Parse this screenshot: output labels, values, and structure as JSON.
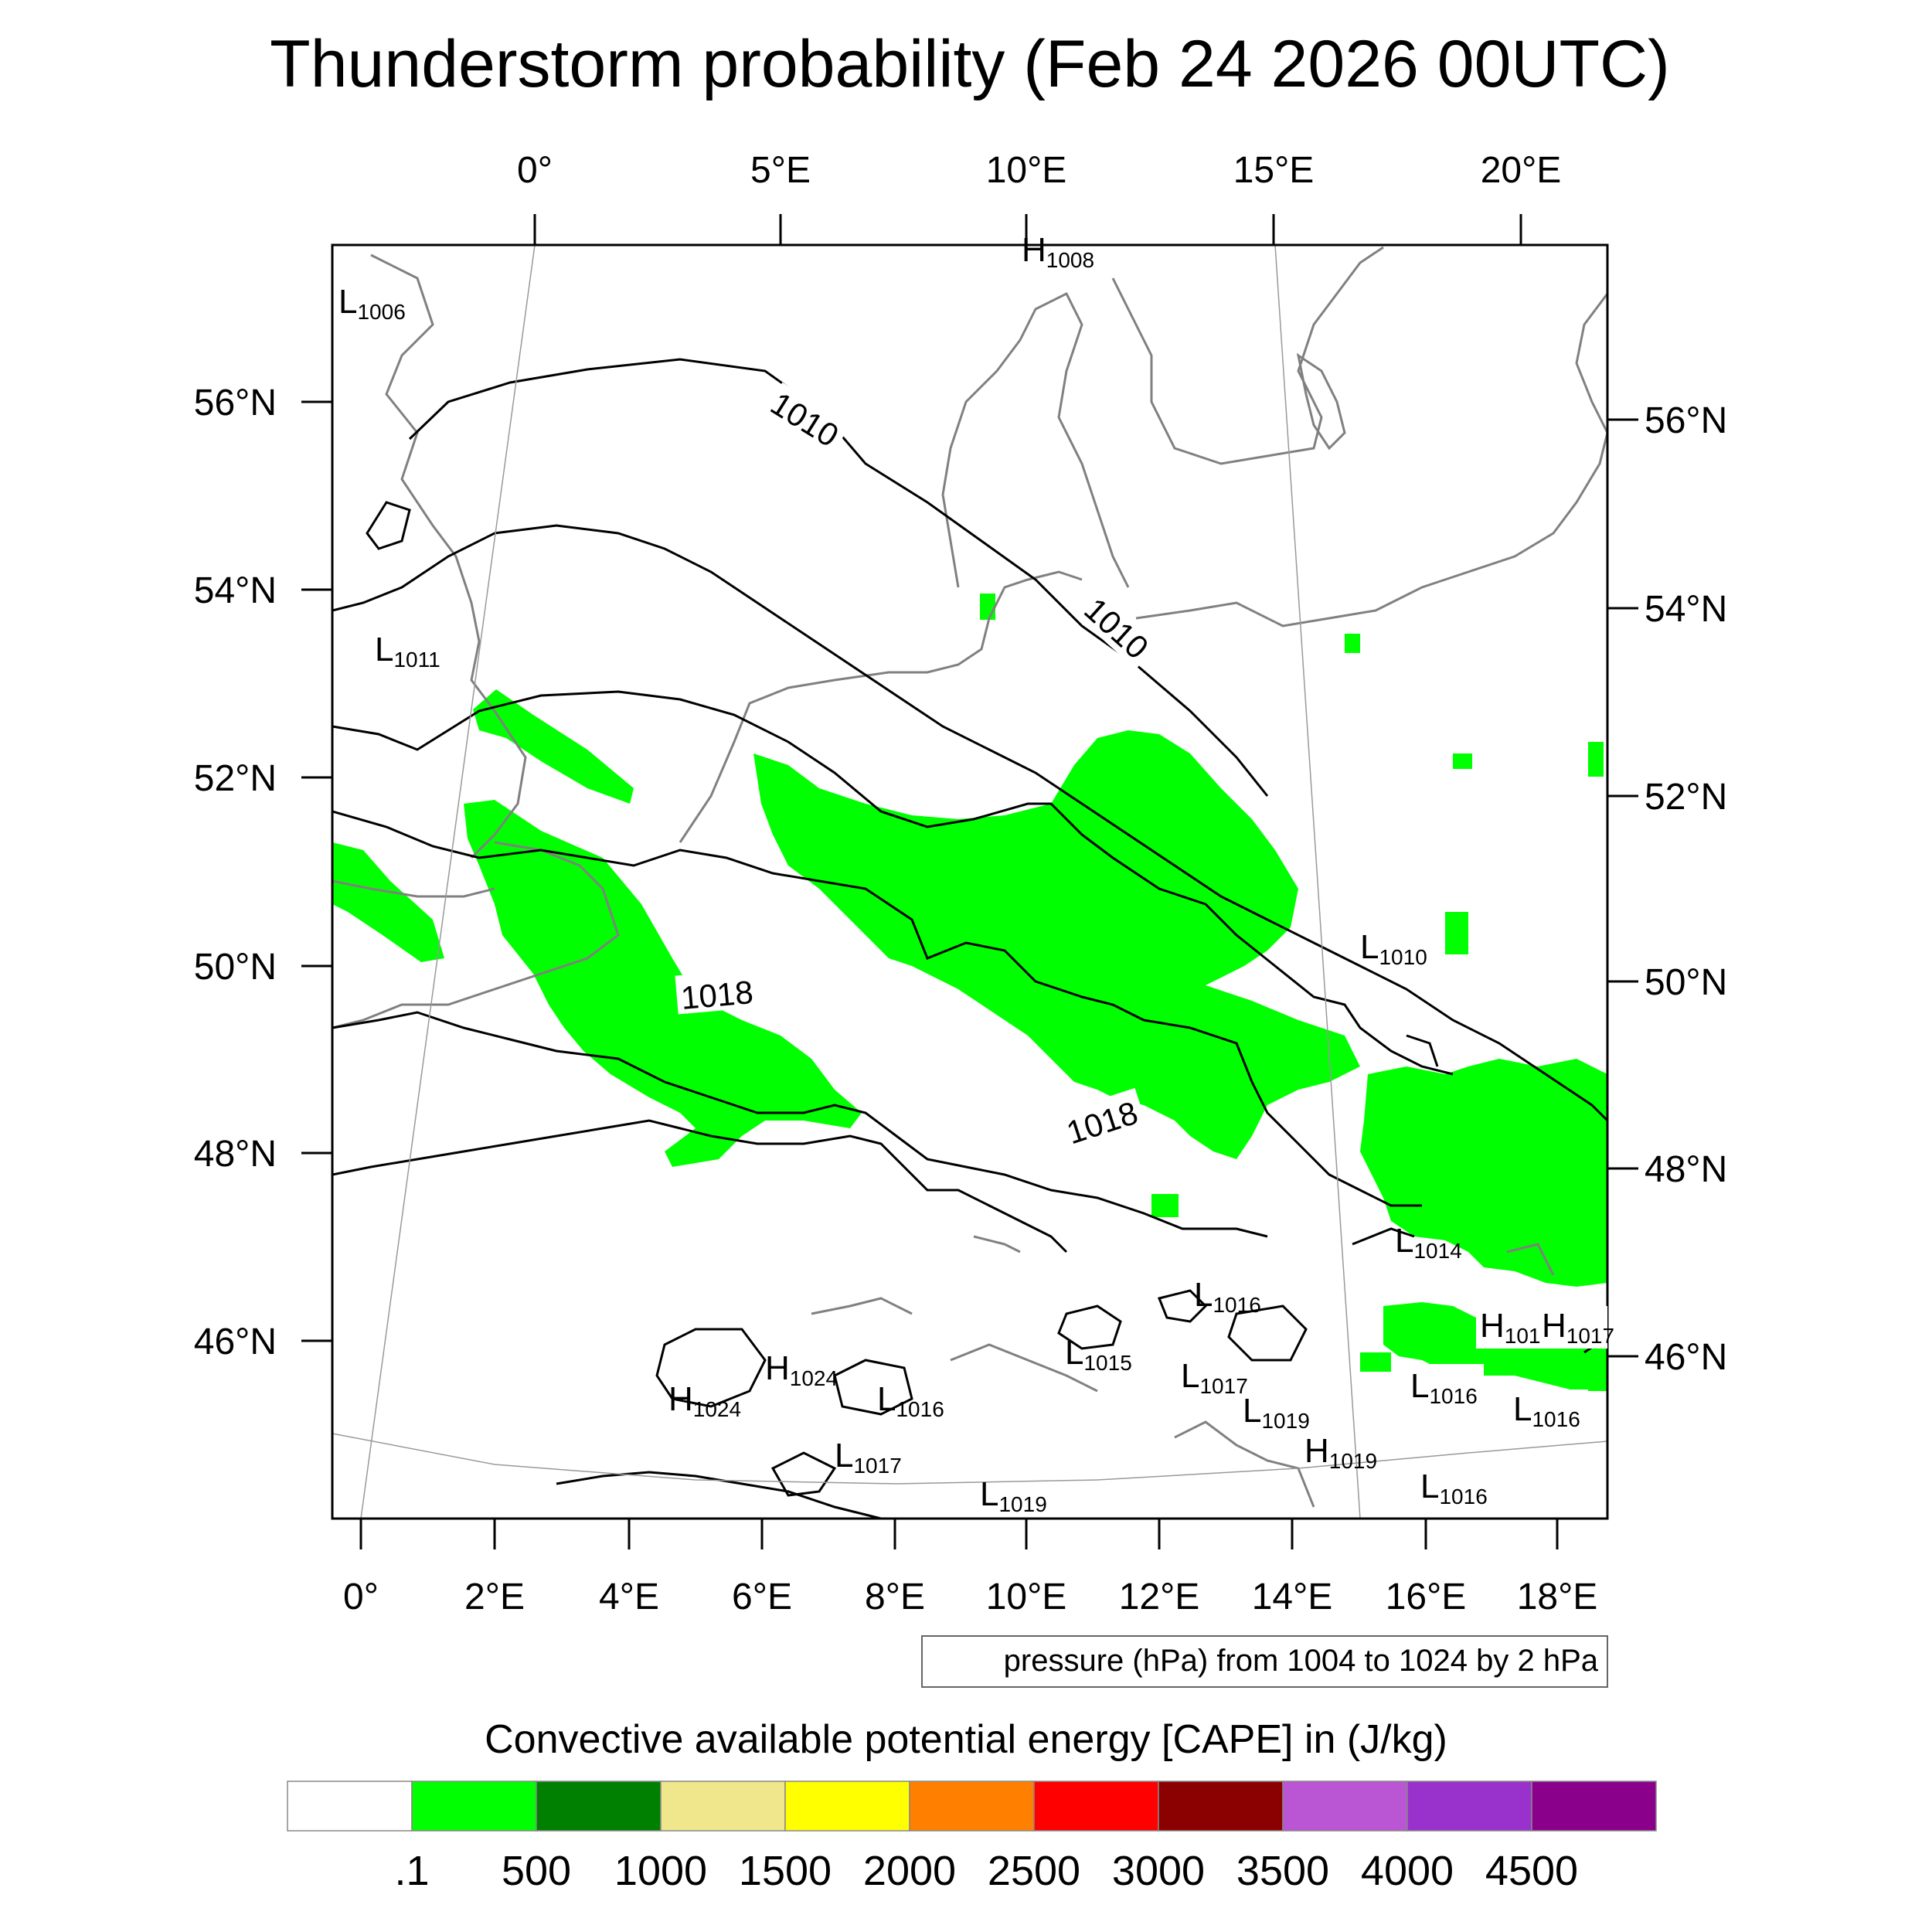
{
  "title": "Thunderstorm probability (Feb 24 2026 00UTC)",
  "top_lon_labels": [
    "0°",
    "5°E",
    "10°E",
    "15°E",
    "20°E"
  ],
  "bottom_lon_labels": [
    "0°",
    "2°E",
    "4°E",
    "6°E",
    "8°E",
    "10°E",
    "12°E",
    "14°E",
    "16°E",
    "18°E"
  ],
  "left_lat_labels": [
    "56°N",
    "54°N",
    "52°N",
    "50°N",
    "48°N",
    "46°N"
  ],
  "right_lat_labels": [
    "56°N",
    "54°N",
    "52°N",
    "50°N",
    "48°N",
    "46°N"
  ],
  "contour_labels": [
    "1010",
    "1010",
    "1018",
    "1018"
  ],
  "pressure_centers": [
    {
      "type": "H",
      "value": "1008"
    },
    {
      "type": "L",
      "value": "1006"
    },
    {
      "type": "L",
      "value": "1011"
    },
    {
      "type": "L",
      "value": "1010"
    },
    {
      "type": "L",
      "value": "1014"
    },
    {
      "type": "L",
      "value": "1016"
    },
    {
      "type": "H",
      "value": "101"
    },
    {
      "type": "H",
      "value": "1017"
    },
    {
      "type": "L",
      "value": "1015"
    },
    {
      "type": "L",
      "value": "1017"
    },
    {
      "type": "H",
      "value": "1024"
    },
    {
      "type": "H",
      "value": "1024"
    },
    {
      "type": "L",
      "value": "1016"
    },
    {
      "type": "L",
      "value": "1016"
    },
    {
      "type": "L",
      "value": "1016"
    },
    {
      "type": "L",
      "value": "1017"
    },
    {
      "type": "L",
      "value": "1019"
    },
    {
      "type": "H",
      "value": "1019"
    },
    {
      "type": "L",
      "value": "1016"
    },
    {
      "type": "L",
      "value": "1019"
    }
  ],
  "pressure_note": "pressure (hPa) from 1004 to 1024 by 2 hPa",
  "legend": {
    "title": "Convective available potential energy [CAPE] in (J/kg)",
    "colors": [
      "#ffffff",
      "#00ff00",
      "#008000",
      "#f0e68c",
      "#ffff00",
      "#ff8000",
      "#ff0000",
      "#8b0000",
      "#ba55d3",
      "#9932cc",
      "#8b008b"
    ],
    "ticks": [
      ".1",
      "500",
      "1000",
      "1500",
      "2000",
      "2500",
      "3000",
      "3500",
      "4000",
      "4500"
    ]
  },
  "colors": {
    "cape_fill": "#00ff00",
    "coast": "#808080",
    "isobar": "#000000",
    "graticule": "#999999"
  }
}
